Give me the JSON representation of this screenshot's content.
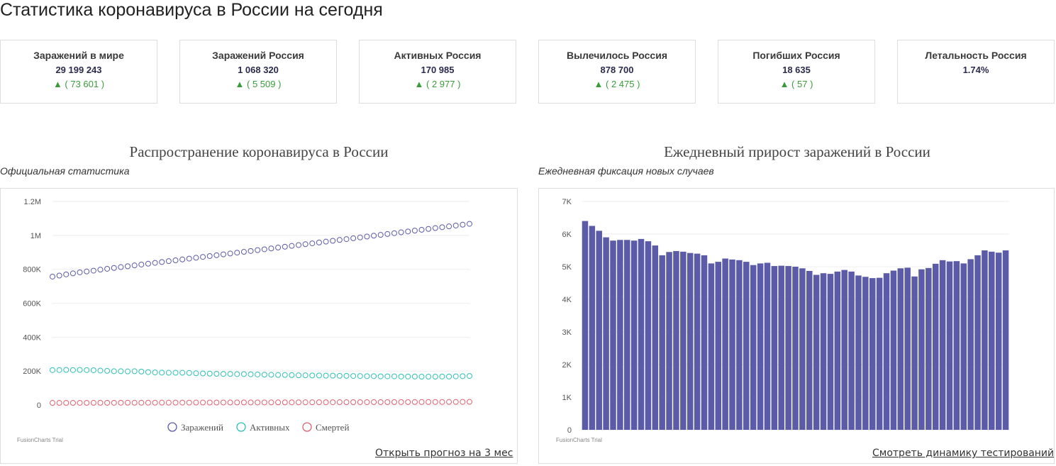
{
  "page": {
    "title": "Статистика коронавируса в России на сегодня"
  },
  "cards": [
    {
      "label": "Заражений в мире",
      "value": "29 199 243",
      "delta": "▲ ( 73 601 )"
    },
    {
      "label": "Заражений Россия",
      "value": "1 068 320",
      "delta": "▲ ( 5 509 )"
    },
    {
      "label": "Активных Россия",
      "value": "170 985",
      "delta": "▲ ( 2 977 )"
    },
    {
      "label": "Вылечилось Россия",
      "value": "878 700",
      "delta": "▲ ( 2 475 )"
    },
    {
      "label": "Погибших Россия",
      "value": "18 635",
      "delta": "▲ ( 57 )"
    },
    {
      "label": "Летальность Россия",
      "value": "1.74%",
      "delta": ""
    }
  ],
  "colors": {
    "infected": "#5b5ba8",
    "active": "#2ec0b4",
    "deaths": "#e06070",
    "bar": "#5b5ba8",
    "delta": "#3b9b3b"
  },
  "left_chart": {
    "title": "Распространение коронавируса в России",
    "subtitle": "Официальная статистика",
    "trial": "FusionCharts Trial",
    "link": "Открыть прогноз на 3 мес"
  },
  "right_chart": {
    "title": "Ежедневный прирост заражений в России",
    "subtitle": "Ежедневная фиксация новых случаев",
    "trial": "FusionCharts Trial",
    "link": "Смотреть динамику тестирований"
  },
  "chart_data": [
    {
      "type": "line",
      "markers": "open-circle",
      "x": [
        1,
        2,
        3,
        4,
        5,
        6,
        7,
        8,
        9,
        10,
        11,
        12,
        13,
        14,
        15,
        16,
        17,
        18,
        19,
        20,
        21,
        22,
        23,
        24,
        25,
        26,
        27,
        28,
        29,
        30,
        31,
        32,
        33,
        34,
        35,
        36,
        37,
        38,
        39,
        40,
        41,
        42,
        43,
        44,
        45,
        46,
        47,
        48,
        49,
        50,
        51,
        52,
        53,
        54,
        55,
        56,
        57,
        58,
        59,
        60,
        61,
        62
      ],
      "ylim": [
        0,
        1200000
      ],
      "yticks": [
        "0",
        "200K",
        "400K",
        "600K",
        "800K",
        "1M",
        "1.2M"
      ],
      "legend": "bottom",
      "series": [
        {
          "name": "Заражений",
          "values": [
            757000,
            763000,
            770000,
            776000,
            782000,
            787000,
            792000,
            798000,
            803000,
            808000,
            813000,
            818000,
            823000,
            828000,
            833000,
            838000,
            843000,
            848000,
            853000,
            858000,
            863000,
            868000,
            873000,
            878000,
            883000,
            888000,
            893000,
            898000,
            903000,
            908000,
            913000,
            918000,
            923000,
            928000,
            933000,
            938000,
            943000,
            948000,
            953000,
            958000,
            963000,
            968000,
            973000,
            978000,
            983000,
            988000,
            993000,
            998000,
            1003000,
            1008000,
            1013000,
            1018000,
            1023000,
            1028000,
            1033000,
            1038000,
            1043000,
            1048000,
            1053000,
            1058000,
            1063000,
            1068000
          ]
        },
        {
          "name": "Активных",
          "values": [
            206000,
            206000,
            207000,
            206000,
            207000,
            206000,
            205000,
            203000,
            201000,
            199000,
            199000,
            198000,
            199000,
            197000,
            194000,
            192000,
            191000,
            190000,
            190000,
            190000,
            189000,
            187000,
            186000,
            185000,
            184000,
            183000,
            183000,
            182000,
            182000,
            181000,
            180000,
            179000,
            178000,
            177000,
            177000,
            176000,
            175000,
            175000,
            174000,
            174000,
            173000,
            173000,
            172000,
            172000,
            171000,
            171000,
            170000,
            170000,
            169000,
            169000,
            169000,
            168000,
            168000,
            168000,
            167000,
            167000,
            167000,
            168000,
            168000,
            169000,
            170000,
            171000
          ]
        },
        {
          "name": "Смертей",
          "values": [
            12300,
            12400,
            12500,
            12600,
            12700,
            12800,
            12900,
            13000,
            13100,
            13200,
            13300,
            13400,
            13500,
            13600,
            13700,
            13800,
            13900,
            14000,
            14100,
            14200,
            14300,
            14400,
            14500,
            14600,
            14700,
            14800,
            14900,
            15000,
            15100,
            15200,
            15300,
            15400,
            15500,
            15600,
            15700,
            15800,
            15900,
            16000,
            16100,
            16200,
            16300,
            16400,
            16500,
            16600,
            16700,
            16800,
            16900,
            17000,
            17100,
            17200,
            17300,
            17400,
            17500,
            17600,
            17700,
            17800,
            17900,
            18000,
            18100,
            18200,
            18400,
            18635
          ]
        }
      ]
    },
    {
      "type": "bar",
      "ylim": [
        0,
        7000
      ],
      "yticks": [
        "0",
        "1K",
        "2K",
        "3K",
        "4K",
        "5K",
        "6K",
        "7K"
      ],
      "values": [
        6400,
        6250,
        6100,
        5900,
        5800,
        5820,
        5820,
        5800,
        5850,
        5780,
        5650,
        5350,
        5450,
        5480,
        5460,
        5420,
        5400,
        5350,
        5100,
        5150,
        5250,
        5220,
        5200,
        5150,
        5050,
        5100,
        5120,
        5020,
        5030,
        5020,
        5000,
        4950,
        4870,
        4750,
        4800,
        4780,
        4850,
        4900,
        4850,
        4730,
        4690,
        4650,
        4660,
        4800,
        4880,
        4950,
        4970,
        4700,
        4920,
        4960,
        5090,
        5200,
        5160,
        5170,
        5100,
        5230,
        5350,
        5500,
        5460,
        5430,
        5500
      ]
    }
  ]
}
